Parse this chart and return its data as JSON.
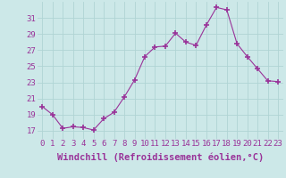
{
  "x": [
    0,
    1,
    2,
    3,
    4,
    5,
    6,
    7,
    8,
    9,
    10,
    11,
    12,
    13,
    14,
    15,
    16,
    17,
    18,
    19,
    20,
    21,
    22,
    23
  ],
  "y": [
    20.0,
    19.0,
    17.3,
    17.5,
    17.4,
    17.1,
    18.5,
    19.3,
    21.2,
    23.3,
    26.2,
    27.4,
    27.5,
    29.1,
    28.0,
    27.6,
    30.1,
    32.3,
    32.0,
    27.8,
    26.2,
    24.7,
    23.2,
    23.1
  ],
  "line_color": "#993399",
  "marker_color": "#993399",
  "bg_color": "#cce8e8",
  "grid_color": "#b0d4d4",
  "xlabel": "Windchill (Refroidissement éolien,°C)",
  "xlabel_color": "#993399",
  "tick_color": "#993399",
  "ylim": [
    16,
    33
  ],
  "yticks": [
    17,
    19,
    21,
    23,
    25,
    27,
    29,
    31
  ],
  "xticks": [
    0,
    1,
    2,
    3,
    4,
    5,
    6,
    7,
    8,
    9,
    10,
    11,
    12,
    13,
    14,
    15,
    16,
    17,
    18,
    19,
    20,
    21,
    22,
    23
  ],
  "font_size": 6.5,
  "xlabel_fontsize": 7.5
}
